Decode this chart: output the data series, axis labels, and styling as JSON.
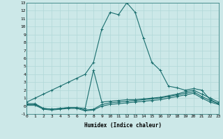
{
  "xlabel": "Humidex (Indice chaleur)",
  "xlim": [
    0,
    23
  ],
  "ylim": [
    -1,
    13
  ],
  "ytick_values": [
    -1,
    0,
    1,
    2,
    3,
    4,
    5,
    6,
    7,
    8,
    9,
    10,
    11,
    12,
    13
  ],
  "xtick_values": [
    0,
    1,
    2,
    3,
    4,
    5,
    6,
    7,
    8,
    9,
    10,
    11,
    12,
    13,
    14,
    15,
    16,
    17,
    18,
    19,
    20,
    21,
    22,
    23
  ],
  "background_color": "#cce8e8",
  "grid_color": "#b0d8d8",
  "line_color": "#1a6e6e",
  "curve_main_x": [
    0,
    1,
    2,
    3,
    4,
    5,
    6,
    7,
    8,
    9,
    10,
    11,
    12,
    13,
    14,
    15,
    16,
    17,
    18,
    19,
    20,
    21,
    22,
    23
  ],
  "curve_main_y": [
    0.5,
    1.0,
    1.5,
    2.0,
    2.5,
    3.0,
    3.5,
    4.0,
    5.5,
    9.7,
    11.8,
    11.5,
    13.0,
    11.8,
    8.5,
    5.5,
    4.5,
    2.5,
    2.3,
    2.0,
    2.2,
    2.0,
    0.8,
    0.3
  ],
  "curve_spike_x": [
    0,
    1,
    2,
    3,
    4,
    5,
    6,
    7,
    8,
    9,
    10,
    11,
    12,
    13,
    14,
    15,
    16,
    17,
    18,
    19,
    20,
    21,
    22,
    23
  ],
  "curve_spike_y": [
    0.3,
    0.3,
    -0.3,
    -0.4,
    -0.3,
    -0.2,
    -0.2,
    -0.3,
    4.5,
    0.5,
    0.6,
    0.7,
    0.8,
    0.8,
    0.9,
    1.0,
    1.1,
    1.3,
    1.5,
    1.8,
    2.0,
    1.5,
    1.0,
    0.5
  ],
  "curve_flat1_x": [
    0,
    1,
    2,
    3,
    4,
    5,
    6,
    7,
    8,
    9,
    10,
    11,
    12,
    13,
    14,
    15,
    16,
    17,
    18,
    19,
    20,
    21,
    22,
    23
  ],
  "curve_flat1_y": [
    0.2,
    0.2,
    -0.3,
    -0.4,
    -0.3,
    -0.2,
    -0.2,
    -0.5,
    -0.4,
    0.2,
    0.4,
    0.5,
    0.6,
    0.7,
    0.8,
    0.9,
    1.0,
    1.2,
    1.4,
    1.6,
    1.8,
    1.2,
    0.7,
    0.3
  ],
  "curve_flat2_x": [
    0,
    1,
    2,
    3,
    4,
    5,
    6,
    7,
    8,
    9,
    10,
    11,
    12,
    13,
    14,
    15,
    16,
    17,
    18,
    19,
    20,
    21,
    22,
    23
  ],
  "curve_flat2_y": [
    0.1,
    0.1,
    -0.4,
    -0.5,
    -0.4,
    -0.3,
    -0.3,
    -0.6,
    -0.5,
    0.0,
    0.2,
    0.3,
    0.4,
    0.5,
    0.6,
    0.7,
    0.8,
    1.0,
    1.2,
    1.4,
    1.6,
    1.0,
    0.5,
    0.2
  ]
}
